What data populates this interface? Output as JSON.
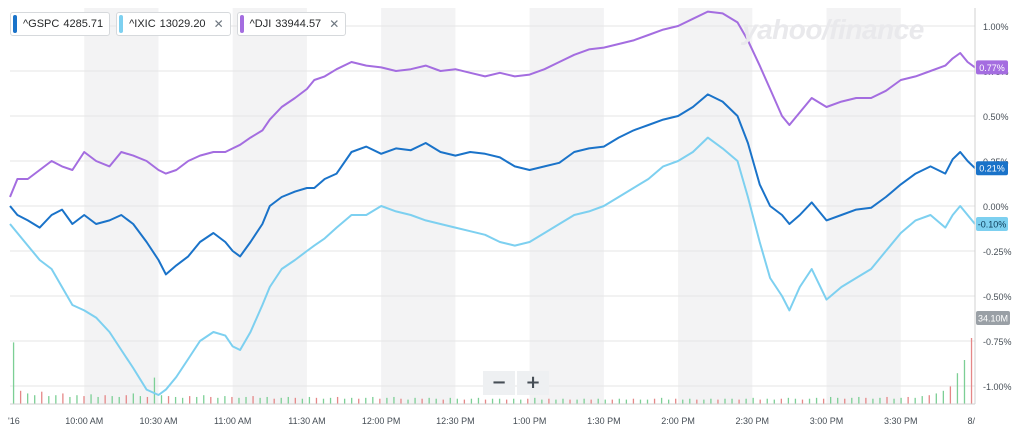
{
  "legend": [
    {
      "symbol": "^GSPC",
      "value": "4285.71",
      "color": "#1a73c9",
      "closable": false
    },
    {
      "symbol": "^IXIC",
      "value": "13029.20",
      "color": "#7dd0f0",
      "closable": true
    },
    {
      "symbol": "^DJI",
      "value": "33944.57",
      "color": "#a46de0",
      "closable": true
    }
  ],
  "close_glyph": "✕",
  "brand_text": "yahoo/finance",
  "zoom": {
    "minus": "−",
    "plus": "+"
  },
  "colors": {
    "gspc": "#1a73c9",
    "ixic": "#7dd0f0",
    "dji": "#a46de0",
    "vol_up": "#7ccf95",
    "vol_down": "#e58787",
    "band": "#f3f3f4",
    "grid": "#e6e6e6"
  },
  "chart_data": {
    "type": "line",
    "x_labels": [
      "'16",
      "10:00 AM",
      "10:30 AM",
      "11:00 AM",
      "11:30 AM",
      "12:00 PM",
      "12:30 PM",
      "1:00 PM",
      "1:30 PM",
      "2:00 PM",
      "2:30 PM",
      "3:00 PM",
      "3:30 PM",
      "8/"
    ],
    "x_ticks": [
      9.5,
      10,
      10.5,
      11,
      11.5,
      12,
      12.5,
      13,
      13.5,
      14,
      14.5,
      15,
      15.5,
      16
    ],
    "y_ticks": [
      1.0,
      0.75,
      0.5,
      0.25,
      0.0,
      -0.25,
      -0.5,
      -0.75,
      -1.0
    ],
    "y_tick_labels": [
      "1.00%",
      "0.75%",
      "0.50%",
      "0.25%",
      "0.00%",
      "-0.25%",
      "-0.50%",
      "-0.75%",
      "-1.00%"
    ],
    "ylim": [
      -1.1,
      1.1
    ],
    "xlim": [
      9.5,
      16
    ],
    "gap": [
      11.55,
      11.62
    ],
    "series": [
      {
        "name": "^GSPC",
        "last_label": "0.21%",
        "color": "#1a73c9",
        "points": [
          [
            9.5,
            0.0
          ],
          [
            9.55,
            -0.05
          ],
          [
            9.62,
            -0.08
          ],
          [
            9.7,
            -0.12
          ],
          [
            9.78,
            -0.05
          ],
          [
            9.85,
            -0.02
          ],
          [
            9.92,
            -0.1
          ],
          [
            10.0,
            -0.05
          ],
          [
            10.08,
            -0.1
          ],
          [
            10.17,
            -0.08
          ],
          [
            10.25,
            -0.05
          ],
          [
            10.33,
            -0.1
          ],
          [
            10.42,
            -0.2
          ],
          [
            10.5,
            -0.3
          ],
          [
            10.55,
            -0.38
          ],
          [
            10.62,
            -0.33
          ],
          [
            10.7,
            -0.28
          ],
          [
            10.78,
            -0.2
          ],
          [
            10.87,
            -0.15
          ],
          [
            10.95,
            -0.2
          ],
          [
            11.0,
            -0.25
          ],
          [
            11.05,
            -0.28
          ],
          [
            11.12,
            -0.2
          ],
          [
            11.2,
            -0.1
          ],
          [
            11.25,
            0.0
          ],
          [
            11.33,
            0.05
          ],
          [
            11.42,
            0.08
          ],
          [
            11.5,
            0.1
          ],
          [
            11.55,
            0.1
          ],
          [
            11.62,
            0.15
          ],
          [
            11.7,
            0.18
          ],
          [
            11.8,
            0.3
          ],
          [
            11.9,
            0.33
          ],
          [
            12.0,
            0.29
          ],
          [
            12.1,
            0.32
          ],
          [
            12.2,
            0.31
          ],
          [
            12.3,
            0.35
          ],
          [
            12.4,
            0.3
          ],
          [
            12.5,
            0.28
          ],
          [
            12.6,
            0.3
          ],
          [
            12.7,
            0.29
          ],
          [
            12.8,
            0.27
          ],
          [
            12.9,
            0.22
          ],
          [
            13.0,
            0.2
          ],
          [
            13.1,
            0.22
          ],
          [
            13.2,
            0.24
          ],
          [
            13.3,
            0.3
          ],
          [
            13.4,
            0.32
          ],
          [
            13.5,
            0.33
          ],
          [
            13.6,
            0.38
          ],
          [
            13.7,
            0.42
          ],
          [
            13.8,
            0.45
          ],
          [
            13.9,
            0.48
          ],
          [
            14.0,
            0.5
          ],
          [
            14.1,
            0.55
          ],
          [
            14.2,
            0.62
          ],
          [
            14.3,
            0.58
          ],
          [
            14.4,
            0.5
          ],
          [
            14.47,
            0.35
          ],
          [
            14.55,
            0.12
          ],
          [
            14.62,
            0.0
          ],
          [
            14.7,
            -0.05
          ],
          [
            14.75,
            -0.1
          ],
          [
            14.82,
            -0.05
          ],
          [
            14.9,
            0.02
          ],
          [
            15.0,
            -0.08
          ],
          [
            15.1,
            -0.05
          ],
          [
            15.2,
            -0.02
          ],
          [
            15.3,
            -0.01
          ],
          [
            15.4,
            0.05
          ],
          [
            15.5,
            0.12
          ],
          [
            15.6,
            0.18
          ],
          [
            15.7,
            0.22
          ],
          [
            15.8,
            0.18
          ],
          [
            15.85,
            0.26
          ],
          [
            15.9,
            0.3
          ],
          [
            15.95,
            0.25
          ],
          [
            16.0,
            0.21
          ]
        ]
      },
      {
        "name": "^IXIC",
        "last_label": "-0.10%",
        "color": "#7dd0f0",
        "points": [
          [
            9.5,
            -0.1
          ],
          [
            9.55,
            -0.15
          ],
          [
            9.62,
            -0.22
          ],
          [
            9.7,
            -0.3
          ],
          [
            9.78,
            -0.35
          ],
          [
            9.85,
            -0.45
          ],
          [
            9.92,
            -0.55
          ],
          [
            10.0,
            -0.58
          ],
          [
            10.08,
            -0.62
          ],
          [
            10.17,
            -0.7
          ],
          [
            10.25,
            -0.8
          ],
          [
            10.33,
            -0.9
          ],
          [
            10.42,
            -1.02
          ],
          [
            10.5,
            -1.05
          ],
          [
            10.55,
            -1.02
          ],
          [
            10.62,
            -0.95
          ],
          [
            10.7,
            -0.85
          ],
          [
            10.78,
            -0.75
          ],
          [
            10.87,
            -0.7
          ],
          [
            10.95,
            -0.72
          ],
          [
            11.0,
            -0.78
          ],
          [
            11.05,
            -0.8
          ],
          [
            11.12,
            -0.7
          ],
          [
            11.2,
            -0.55
          ],
          [
            11.25,
            -0.45
          ],
          [
            11.33,
            -0.35
          ],
          [
            11.42,
            -0.3
          ],
          [
            11.5,
            -0.25
          ],
          [
            11.55,
            -0.22
          ],
          [
            11.62,
            -0.18
          ],
          [
            11.7,
            -0.12
          ],
          [
            11.8,
            -0.05
          ],
          [
            11.9,
            -0.05
          ],
          [
            12.0,
            0.0
          ],
          [
            12.1,
            -0.03
          ],
          [
            12.2,
            -0.05
          ],
          [
            12.3,
            -0.08
          ],
          [
            12.4,
            -0.1
          ],
          [
            12.5,
            -0.12
          ],
          [
            12.6,
            -0.14
          ],
          [
            12.7,
            -0.16
          ],
          [
            12.8,
            -0.2
          ],
          [
            12.9,
            -0.22
          ],
          [
            13.0,
            -0.2
          ],
          [
            13.1,
            -0.15
          ],
          [
            13.2,
            -0.1
          ],
          [
            13.3,
            -0.05
          ],
          [
            13.4,
            -0.03
          ],
          [
            13.5,
            0.0
          ],
          [
            13.6,
            0.05
          ],
          [
            13.7,
            0.1
          ],
          [
            13.8,
            0.15
          ],
          [
            13.9,
            0.22
          ],
          [
            14.0,
            0.25
          ],
          [
            14.1,
            0.3
          ],
          [
            14.2,
            0.38
          ],
          [
            14.3,
            0.32
          ],
          [
            14.4,
            0.25
          ],
          [
            14.47,
            0.05
          ],
          [
            14.55,
            -0.2
          ],
          [
            14.62,
            -0.4
          ],
          [
            14.7,
            -0.5
          ],
          [
            14.75,
            -0.58
          ],
          [
            14.82,
            -0.45
          ],
          [
            14.9,
            -0.35
          ],
          [
            15.0,
            -0.52
          ],
          [
            15.1,
            -0.45
          ],
          [
            15.2,
            -0.4
          ],
          [
            15.3,
            -0.35
          ],
          [
            15.4,
            -0.25
          ],
          [
            15.5,
            -0.15
          ],
          [
            15.6,
            -0.08
          ],
          [
            15.7,
            -0.05
          ],
          [
            15.8,
            -0.12
          ],
          [
            15.85,
            -0.05
          ],
          [
            15.9,
            0.0
          ],
          [
            15.95,
            -0.05
          ],
          [
            16.0,
            -0.1
          ]
        ]
      },
      {
        "name": "^DJI",
        "last_label": "0.77%",
        "color": "#a46de0",
        "points": [
          [
            9.5,
            0.05
          ],
          [
            9.55,
            0.15
          ],
          [
            9.62,
            0.15
          ],
          [
            9.7,
            0.2
          ],
          [
            9.78,
            0.25
          ],
          [
            9.85,
            0.22
          ],
          [
            9.92,
            0.2
          ],
          [
            10.0,
            0.3
          ],
          [
            10.08,
            0.25
          ],
          [
            10.17,
            0.22
          ],
          [
            10.25,
            0.3
          ],
          [
            10.33,
            0.28
          ],
          [
            10.42,
            0.25
          ],
          [
            10.5,
            0.2
          ],
          [
            10.55,
            0.18
          ],
          [
            10.62,
            0.2
          ],
          [
            10.7,
            0.25
          ],
          [
            10.78,
            0.28
          ],
          [
            10.87,
            0.3
          ],
          [
            10.95,
            0.3
          ],
          [
            11.0,
            0.32
          ],
          [
            11.05,
            0.34
          ],
          [
            11.12,
            0.38
          ],
          [
            11.2,
            0.42
          ],
          [
            11.25,
            0.48
          ],
          [
            11.33,
            0.55
          ],
          [
            11.42,
            0.6
          ],
          [
            11.5,
            0.65
          ],
          [
            11.55,
            0.7
          ],
          [
            11.62,
            0.72
          ],
          [
            11.7,
            0.76
          ],
          [
            11.8,
            0.8
          ],
          [
            11.9,
            0.78
          ],
          [
            12.0,
            0.77
          ],
          [
            12.1,
            0.75
          ],
          [
            12.2,
            0.76
          ],
          [
            12.3,
            0.78
          ],
          [
            12.4,
            0.75
          ],
          [
            12.5,
            0.76
          ],
          [
            12.6,
            0.74
          ],
          [
            12.7,
            0.72
          ],
          [
            12.8,
            0.74
          ],
          [
            12.9,
            0.72
          ],
          [
            13.0,
            0.73
          ],
          [
            13.1,
            0.76
          ],
          [
            13.2,
            0.8
          ],
          [
            13.3,
            0.84
          ],
          [
            13.4,
            0.87
          ],
          [
            13.5,
            0.88
          ],
          [
            13.6,
            0.9
          ],
          [
            13.7,
            0.92
          ],
          [
            13.8,
            0.95
          ],
          [
            13.9,
            0.98
          ],
          [
            14.0,
            1.0
          ],
          [
            14.1,
            1.04
          ],
          [
            14.2,
            1.08
          ],
          [
            14.3,
            1.07
          ],
          [
            14.4,
            1.02
          ],
          [
            14.47,
            0.92
          ],
          [
            14.55,
            0.78
          ],
          [
            14.62,
            0.65
          ],
          [
            14.7,
            0.5
          ],
          [
            14.75,
            0.45
          ],
          [
            14.82,
            0.52
          ],
          [
            14.9,
            0.6
          ],
          [
            15.0,
            0.55
          ],
          [
            15.1,
            0.58
          ],
          [
            15.2,
            0.6
          ],
          [
            15.3,
            0.6
          ],
          [
            15.4,
            0.64
          ],
          [
            15.5,
            0.7
          ],
          [
            15.6,
            0.72
          ],
          [
            15.7,
            0.75
          ],
          [
            15.8,
            0.78
          ],
          [
            15.85,
            0.82
          ],
          [
            15.9,
            0.85
          ],
          [
            15.95,
            0.8
          ],
          [
            16.0,
            0.77
          ]
        ]
      }
    ],
    "volume": {
      "label": "34.10M",
      "bars": [
        0.7,
        0.15,
        0.12,
        0.1,
        0.14,
        0.09,
        0.1,
        0.12,
        0.08,
        0.1,
        0.09,
        0.11,
        0.08,
        0.1,
        0.09,
        0.08,
        0.1,
        0.12,
        0.09,
        0.08,
        0.3,
        0.1,
        0.09,
        0.08,
        0.07,
        0.09,
        0.08,
        0.1,
        0.08,
        0.07,
        0.09,
        0.08,
        0.07,
        0.08,
        0.09,
        0.07,
        0.08,
        0.06,
        0.07,
        0.08,
        0.07,
        0.06,
        0.08,
        0.07,
        0.06,
        0.07,
        0.08,
        0.06,
        0.07,
        0.06,
        0.07,
        0.08,
        0.06,
        0.07,
        0.08,
        0.06,
        0.05,
        0.07,
        0.06,
        0.07,
        0.06,
        0.05,
        0.07,
        0.06,
        0.05,
        0.06,
        0.07,
        0.05,
        0.06,
        0.06,
        0.05,
        0.06,
        0.05,
        0.06,
        0.07,
        0.05,
        0.06,
        0.05,
        0.06,
        0.05,
        0.05,
        0.06,
        0.05,
        0.06,
        0.05,
        0.05,
        0.06,
        0.05,
        0.06,
        0.05,
        0.05,
        0.06,
        0.07,
        0.05,
        0.06,
        0.05,
        0.06,
        0.05,
        0.05,
        0.06,
        0.05,
        0.06,
        0.06,
        0.05,
        0.06,
        0.07,
        0.05,
        0.06,
        0.05,
        0.06,
        0.07,
        0.06,
        0.05,
        0.06,
        0.07,
        0.06,
        0.08,
        0.07,
        0.06,
        0.07,
        0.08,
        0.07,
        0.06,
        0.07,
        0.08,
        0.06,
        0.07,
        0.08,
        0.07,
        0.09,
        0.1,
        0.12,
        0.15,
        0.2,
        0.35,
        0.5,
        0.75
      ],
      "down_every": 3
    }
  }
}
